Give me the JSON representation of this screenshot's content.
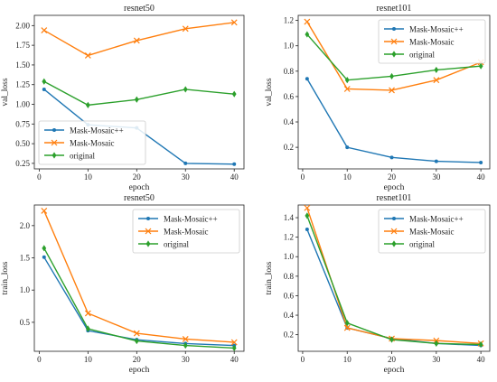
{
  "colors": {
    "Mask-Mosaic++": "#1f77b4",
    "Mask-Mosaic": "#ff7f0e",
    "original": "#2ca02c"
  },
  "chart_data": [
    {
      "type": "line",
      "title": "resnet50",
      "xlabel": "epoch",
      "ylabel": "val_loss",
      "x": [
        1,
        10,
        20,
        30,
        40
      ],
      "xlim": [
        -1,
        42
      ],
      "ylim": [
        0.18,
        2.13
      ],
      "xticks": [
        0,
        10,
        20,
        30,
        40
      ],
      "yticks": [
        0.25,
        0.5,
        0.75,
        1.0,
        1.25,
        1.5,
        1.75,
        2.0
      ],
      "ytick_labels": [
        "0.25",
        "0.50",
        "0.75",
        "1.00",
        "1.25",
        "1.50",
        "1.75",
        "2.00"
      ],
      "legend": "lower-left",
      "grid": false,
      "series": [
        {
          "name": "Mask-Mosaic++",
          "marker": "dot",
          "values": [
            1.19,
            0.74,
            0.7,
            0.25,
            0.24
          ]
        },
        {
          "name": "Mask-Mosaic",
          "marker": "x",
          "values": [
            1.94,
            1.62,
            1.81,
            1.96,
            2.04
          ]
        },
        {
          "name": "original",
          "marker": "diamond",
          "values": [
            1.29,
            0.99,
            1.06,
            1.19,
            1.13
          ]
        }
      ]
    },
    {
      "type": "line",
      "title": "resnet101",
      "xlabel": "epoch",
      "ylabel": "val_loss",
      "x": [
        1,
        10,
        20,
        30,
        40
      ],
      "xlim": [
        -1,
        42
      ],
      "ylim": [
        0.03,
        1.24
      ],
      "xticks": [
        0,
        10,
        20,
        30,
        40
      ],
      "yticks": [
        0.2,
        0.4,
        0.6,
        0.8,
        1.0,
        1.2
      ],
      "ytick_labels": [
        "0.2",
        "0.4",
        "0.6",
        "0.8",
        "1.0",
        "1.2"
      ],
      "legend": "top-right",
      "grid": false,
      "series": [
        {
          "name": "Mask-Mosaic++",
          "marker": "dot",
          "values": [
            0.74,
            0.2,
            0.12,
            0.09,
            0.08
          ]
        },
        {
          "name": "Mask-Mosaic",
          "marker": "x",
          "values": [
            1.19,
            0.66,
            0.65,
            0.73,
            0.87
          ]
        },
        {
          "name": "original",
          "marker": "diamond",
          "values": [
            1.09,
            0.73,
            0.76,
            0.81,
            0.84
          ]
        }
      ]
    },
    {
      "type": "line",
      "title": "resnet50",
      "xlabel": "epoch",
      "ylabel": "train_loss",
      "x": [
        1,
        10,
        20,
        30,
        40
      ],
      "xlim": [
        -1,
        42
      ],
      "ylim": [
        0.05,
        2.32
      ],
      "xticks": [
        0,
        10,
        20,
        30,
        40
      ],
      "yticks": [
        0.5,
        1.0,
        1.5,
        2.0
      ],
      "ytick_labels": [
        "0.5",
        "1.0",
        "1.5",
        "2.0"
      ],
      "legend": "top-right",
      "grid": false,
      "series": [
        {
          "name": "Mask-Mosaic++",
          "marker": "dot",
          "values": [
            1.51,
            0.37,
            0.23,
            0.17,
            0.14
          ]
        },
        {
          "name": "Mask-Mosaic",
          "marker": "x",
          "values": [
            2.23,
            0.64,
            0.33,
            0.24,
            0.19
          ]
        },
        {
          "name": "original",
          "marker": "diamond",
          "values": [
            1.65,
            0.4,
            0.21,
            0.14,
            0.1
          ]
        }
      ]
    },
    {
      "type": "line",
      "title": "resnet101",
      "xlabel": "epoch",
      "ylabel": "train_loss",
      "x": [
        1,
        10,
        20,
        30,
        40
      ],
      "xlim": [
        -1,
        42
      ],
      "ylim": [
        0.03,
        1.53
      ],
      "xticks": [
        0,
        10,
        20,
        30,
        40
      ],
      "yticks": [
        0.2,
        0.4,
        0.6,
        0.8,
        1.0,
        1.2,
        1.4
      ],
      "ytick_labels": [
        "0.2",
        "0.4",
        "0.6",
        "0.8",
        "1.0",
        "1.2",
        "1.4"
      ],
      "legend": "top-right",
      "grid": false,
      "series": [
        {
          "name": "Mask-Mosaic++",
          "marker": "dot",
          "values": [
            1.28,
            0.27,
            0.16,
            0.11,
            0.09
          ]
        },
        {
          "name": "Mask-Mosaic",
          "marker": "x",
          "values": [
            1.5,
            0.27,
            0.16,
            0.14,
            0.11
          ]
        },
        {
          "name": "original",
          "marker": "diamond",
          "values": [
            1.42,
            0.32,
            0.15,
            0.11,
            0.1
          ]
        }
      ]
    }
  ]
}
